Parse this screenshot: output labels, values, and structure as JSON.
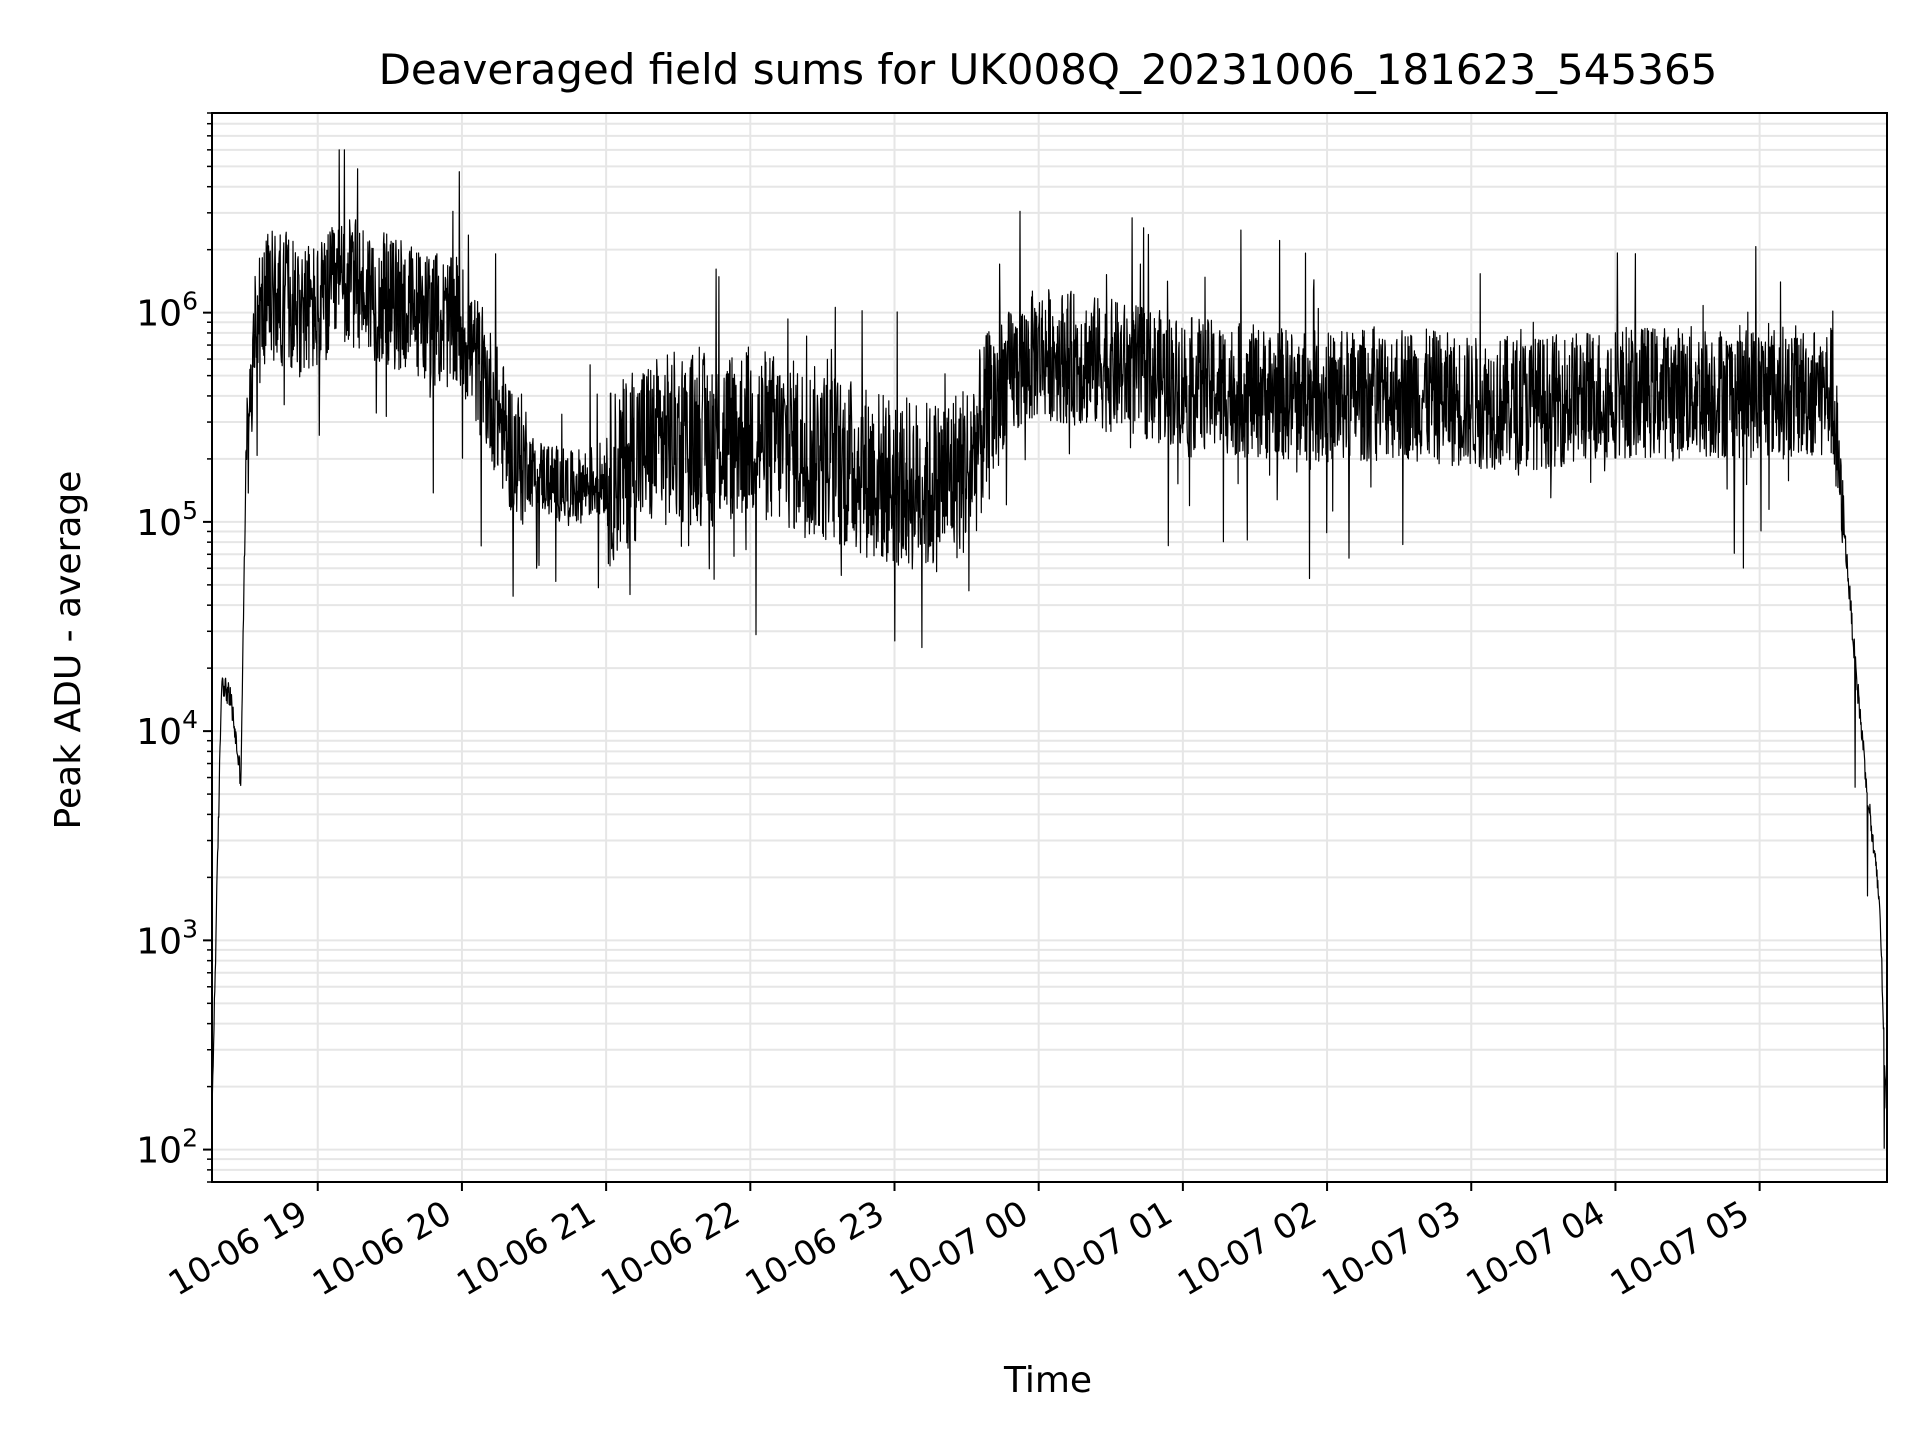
{
  "chart_data": {
    "type": "line",
    "title": "Deaveraged field sums for UK008Q_20231006_181623_545365",
    "xlabel": "Time",
    "ylabel": "Peak ADU - average",
    "yscale": "log",
    "ylim": [
      70,
      9000000
    ],
    "xlim": [
      "10-06 18:16",
      "10-07 05:53"
    ],
    "grid": true,
    "line_color": "#000000",
    "x_ticks": [
      "10-06 19",
      "10-06 20",
      "10-06 21",
      "10-06 22",
      "10-06 23",
      "10-07 00",
      "10-07 01",
      "10-07 02",
      "10-07 03",
      "10-07 04",
      "10-07 05"
    ],
    "y_ticks": [
      {
        "value": 100,
        "base": "10",
        "exp": "2"
      },
      {
        "value": 1000,
        "base": "10",
        "exp": "3"
      },
      {
        "value": 10000,
        "base": "10",
        "exp": "4"
      },
      {
        "value": 100000,
        "base": "10",
        "exp": "5"
      },
      {
        "value": 1000000,
        "base": "10",
        "exp": "6"
      }
    ],
    "series": [
      {
        "x": [
          "10-06 18:16",
          "10-06 18:20",
          "10-06 18:24",
          "10-06 18:28",
          "10-06 18:30",
          "10-06 18:34",
          "10-06 18:40",
          "10-06 18:50",
          "10-06 19:00",
          "10-06 19:10",
          "10-06 19:20",
          "10-06 19:30",
          "10-06 19:40",
          "10-06 19:50",
          "10-06 20:00",
          "10-06 20:10",
          "10-06 20:20",
          "10-06 20:30",
          "10-06 20:45",
          "10-06 21:00",
          "10-06 21:15",
          "10-06 21:30",
          "10-06 21:45",
          "10-06 22:00",
          "10-06 22:15",
          "10-06 22:30",
          "10-06 22:45",
          "10-06 23:00",
          "10-06 23:15",
          "10-06 23:30",
          "10-06 23:45",
          "10-07 00:00",
          "10-07 00:15",
          "10-07 00:30",
          "10-07 00:45",
          "10-07 01:00",
          "10-07 01:30",
          "10-07 02:00",
          "10-07 02:30",
          "10-07 03:00",
          "10-07 03:30",
          "10-07 04:00",
          "10-07 04:30",
          "10-07 05:00",
          "10-07 05:20",
          "10-07 05:30",
          "10-07 05:35",
          "10-07 05:40",
          "10-07 05:45",
          "10-07 05:50",
          "10-07 05:53"
        ],
        "y": [
          150,
          18000,
          14000,
          6000,
          150000,
          900000,
          1300000,
          1200000,
          1100000,
          1500000,
          1400000,
          1200000,
          1100000,
          1000000,
          900000,
          500000,
          250000,
          180000,
          150000,
          170000,
          250000,
          280000,
          270000,
          300000,
          260000,
          230000,
          200000,
          170000,
          160000,
          200000,
          500000,
          700000,
          650000,
          600000,
          550000,
          500000,
          450000,
          420000,
          450000,
          400000,
          400000,
          450000,
          450000,
          450000,
          450000,
          450000,
          100000,
          20000,
          5000,
          1500,
          120
        ]
      }
    ]
  }
}
